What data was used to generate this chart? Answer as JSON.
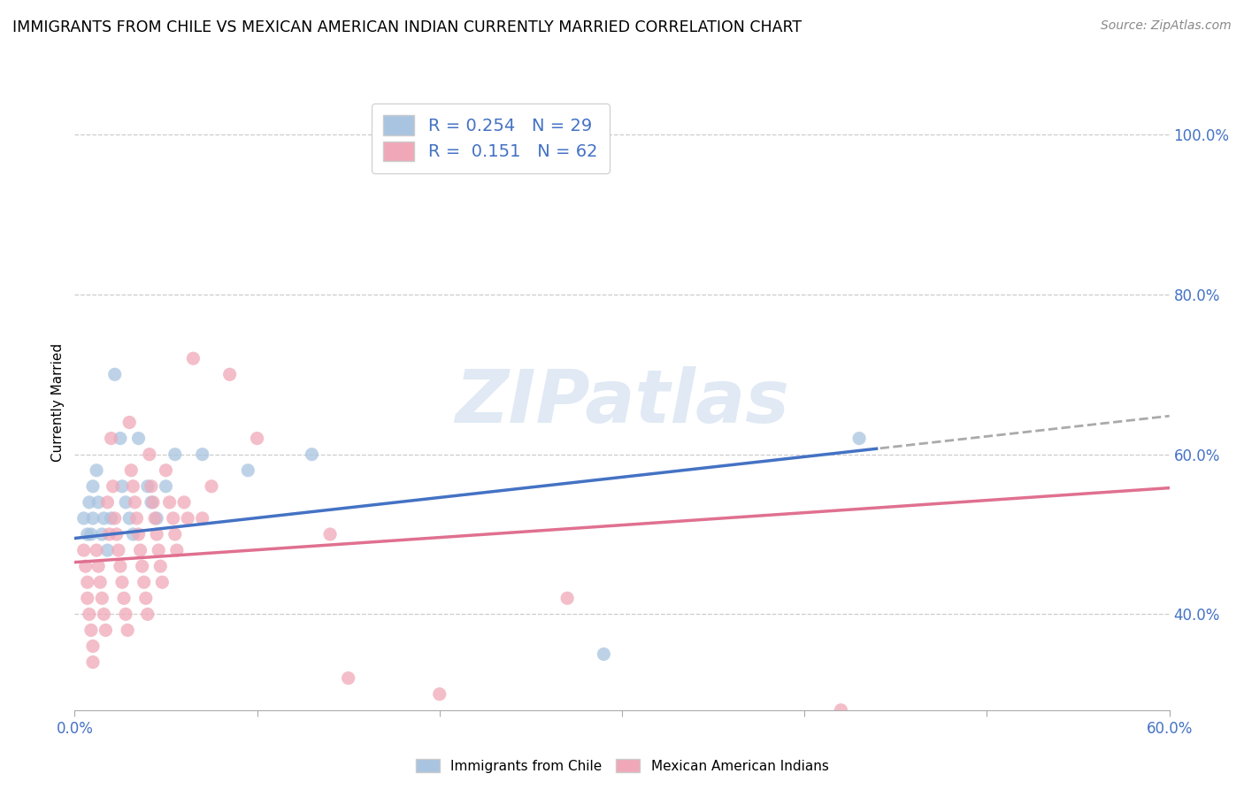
{
  "title": "IMMIGRANTS FROM CHILE VS MEXICAN AMERICAN INDIAN CURRENTLY MARRIED CORRELATION CHART",
  "source": "Source: ZipAtlas.com",
  "ylabel": "Currently Married",
  "xlim": [
    0.0,
    0.6
  ],
  "ylim": [
    0.28,
    1.05
  ],
  "blue_R": 0.254,
  "blue_N": 29,
  "pink_R": 0.151,
  "pink_N": 62,
  "blue_color": "#a8c4e0",
  "pink_color": "#f0a8b8",
  "blue_line_color": "#4472c4",
  "pink_line_color": "#e07090",
  "watermark": "ZIPatlas",
  "blue_scatter": [
    [
      0.005,
      0.52
    ],
    [
      0.007,
      0.5
    ],
    [
      0.008,
      0.54
    ],
    [
      0.009,
      0.5
    ],
    [
      0.01,
      0.56
    ],
    [
      0.01,
      0.52
    ],
    [
      0.012,
      0.58
    ],
    [
      0.013,
      0.54
    ],
    [
      0.015,
      0.5
    ],
    [
      0.016,
      0.52
    ],
    [
      0.018,
      0.48
    ],
    [
      0.02,
      0.52
    ],
    [
      0.022,
      0.7
    ],
    [
      0.025,
      0.62
    ],
    [
      0.026,
      0.56
    ],
    [
      0.028,
      0.54
    ],
    [
      0.03,
      0.52
    ],
    [
      0.032,
      0.5
    ],
    [
      0.035,
      0.62
    ],
    [
      0.04,
      0.56
    ],
    [
      0.042,
      0.54
    ],
    [
      0.045,
      0.52
    ],
    [
      0.05,
      0.56
    ],
    [
      0.055,
      0.6
    ],
    [
      0.07,
      0.6
    ],
    [
      0.095,
      0.58
    ],
    [
      0.13,
      0.6
    ],
    [
      0.29,
      0.35
    ],
    [
      0.43,
      0.62
    ]
  ],
  "pink_scatter": [
    [
      0.005,
      0.48
    ],
    [
      0.006,
      0.46
    ],
    [
      0.007,
      0.44
    ],
    [
      0.007,
      0.42
    ],
    [
      0.008,
      0.4
    ],
    [
      0.009,
      0.38
    ],
    [
      0.01,
      0.36
    ],
    [
      0.01,
      0.34
    ],
    [
      0.012,
      0.48
    ],
    [
      0.013,
      0.46
    ],
    [
      0.014,
      0.44
    ],
    [
      0.015,
      0.42
    ],
    [
      0.016,
      0.4
    ],
    [
      0.017,
      0.38
    ],
    [
      0.018,
      0.54
    ],
    [
      0.019,
      0.5
    ],
    [
      0.02,
      0.62
    ],
    [
      0.021,
      0.56
    ],
    [
      0.022,
      0.52
    ],
    [
      0.023,
      0.5
    ],
    [
      0.024,
      0.48
    ],
    [
      0.025,
      0.46
    ],
    [
      0.026,
      0.44
    ],
    [
      0.027,
      0.42
    ],
    [
      0.028,
      0.4
    ],
    [
      0.029,
      0.38
    ],
    [
      0.03,
      0.64
    ],
    [
      0.031,
      0.58
    ],
    [
      0.032,
      0.56
    ],
    [
      0.033,
      0.54
    ],
    [
      0.034,
      0.52
    ],
    [
      0.035,
      0.5
    ],
    [
      0.036,
      0.48
    ],
    [
      0.037,
      0.46
    ],
    [
      0.038,
      0.44
    ],
    [
      0.039,
      0.42
    ],
    [
      0.04,
      0.4
    ],
    [
      0.041,
      0.6
    ],
    [
      0.042,
      0.56
    ],
    [
      0.043,
      0.54
    ],
    [
      0.044,
      0.52
    ],
    [
      0.045,
      0.5
    ],
    [
      0.046,
      0.48
    ],
    [
      0.047,
      0.46
    ],
    [
      0.048,
      0.44
    ],
    [
      0.05,
      0.58
    ],
    [
      0.052,
      0.54
    ],
    [
      0.054,
      0.52
    ],
    [
      0.055,
      0.5
    ],
    [
      0.056,
      0.48
    ],
    [
      0.06,
      0.54
    ],
    [
      0.062,
      0.52
    ],
    [
      0.065,
      0.72
    ],
    [
      0.07,
      0.52
    ],
    [
      0.075,
      0.56
    ],
    [
      0.085,
      0.7
    ],
    [
      0.1,
      0.62
    ],
    [
      0.14,
      0.5
    ],
    [
      0.15,
      0.32
    ],
    [
      0.2,
      0.3
    ],
    [
      0.27,
      0.42
    ],
    [
      0.42,
      0.28
    ]
  ]
}
